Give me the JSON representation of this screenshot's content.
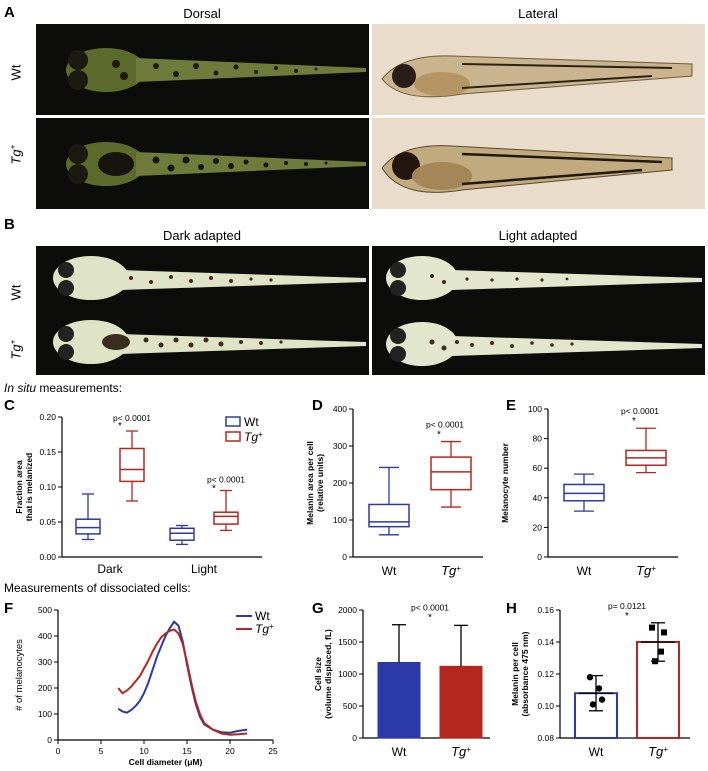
{
  "panels": {
    "A": {
      "letter": "A",
      "col_dorsal": "Dorsal",
      "col_lateral": "Lateral",
      "row_wt": "Wt",
      "row_tg": "Tg",
      "tg_sup": "+"
    },
    "B": {
      "letter": "B",
      "col_dark": "Dark adapted",
      "col_light": "Light adapted",
      "row_wt": "Wt",
      "row_tg": "Tg",
      "tg_sup": "+"
    },
    "insitu_caption": "In situ measurements:",
    "insitu_caption_italic": "In situ",
    "insitu_caption_rest": " measurements:",
    "dissoc_caption": "Measurements of dissociated cells:"
  },
  "colors": {
    "wt": "#2b3aa8",
    "tg": "#b5261e"
  },
  "chart_data": [
    {
      "id": "C",
      "letter": "C",
      "type": "box",
      "ylabel": "Fraction area that is melanized",
      "ylabel_lines": [
        "Fraction area",
        "that is melanized"
      ],
      "ylim": [
        0,
        0.2
      ],
      "yticks": [
        "0.00",
        "0.05",
        "0.10",
        "0.15",
        "0.20"
      ],
      "categories": [
        "Dark",
        "Light"
      ],
      "legend": [
        {
          "name": "Wt"
        },
        {
          "name": "Tg",
          "sup": "+"
        }
      ],
      "annotations": [
        "p< 0.0001",
        "*",
        "p< 0.0001",
        "*"
      ],
      "boxes": [
        {
          "group": "Dark",
          "series": "Wt",
          "min": 0.025,
          "q1": 0.033,
          "median": 0.042,
          "q3": 0.054,
          "max": 0.09
        },
        {
          "group": "Dark",
          "series": "Tg",
          "min": 0.08,
          "q1": 0.108,
          "median": 0.125,
          "q3": 0.155,
          "max": 0.18
        },
        {
          "group": "Light",
          "series": "Wt",
          "min": 0.018,
          "q1": 0.024,
          "median": 0.034,
          "q3": 0.041,
          "max": 0.045
        },
        {
          "group": "Light",
          "series": "Tg",
          "min": 0.038,
          "q1": 0.047,
          "median": 0.058,
          "q3": 0.064,
          "max": 0.095
        }
      ]
    },
    {
      "id": "D",
      "letter": "D",
      "type": "box",
      "ylabel_lines": [
        "Melanin area per cell",
        "(relative units)"
      ],
      "ylim": [
        0,
        400
      ],
      "yticks": [
        "0",
        "100",
        "200",
        "300",
        "400"
      ],
      "categories": [
        "Wt",
        "Tg"
      ],
      "tg_sup": "+",
      "annotations": [
        "p< 0.0001",
        "*"
      ],
      "boxes": [
        {
          "series": "Wt",
          "min": 60,
          "q1": 82,
          "median": 95,
          "q3": 142,
          "max": 242
        },
        {
          "series": "Tg",
          "min": 135,
          "q1": 182,
          "median": 230,
          "q3": 270,
          "max": 312
        }
      ]
    },
    {
      "id": "E",
      "letter": "E",
      "type": "box",
      "ylabel_lines": [
        "Melanocyte number"
      ],
      "ylim": [
        0,
        100
      ],
      "yticks": [
        "0",
        "20",
        "40",
        "60",
        "80",
        "100"
      ],
      "categories": [
        "Wt",
        "Tg"
      ],
      "tg_sup": "+",
      "annotations": [
        "p< 0.0001",
        "*"
      ],
      "boxes": [
        {
          "series": "Wt",
          "min": 31,
          "q1": 38,
          "median": 43,
          "q3": 49,
          "max": 56
        },
        {
          "series": "Tg",
          "min": 57,
          "q1": 62,
          "median": 67,
          "q3": 72,
          "max": 87
        }
      ]
    },
    {
      "id": "F",
      "letter": "F",
      "type": "line",
      "ylabel": "# of melanocytes",
      "xlabel": "Cell diameter (μM)",
      "xlim": [
        0,
        25
      ],
      "ylim": [
        0,
        500
      ],
      "xticks": [
        "0",
        "5",
        "10",
        "15",
        "20",
        "25"
      ],
      "yticks": [
        "0",
        "100",
        "200",
        "300",
        "400",
        "500"
      ],
      "legend": [
        {
          "name": "Wt"
        },
        {
          "name": "Tg",
          "sup": "+"
        }
      ],
      "series": [
        {
          "name": "Wt",
          "x": [
            7,
            7.5,
            8,
            8.5,
            9,
            9.5,
            10,
            10.5,
            11,
            11.5,
            12,
            12.5,
            13,
            13.5,
            14,
            14.5,
            15,
            15.5,
            16,
            16.5,
            17,
            18,
            19,
            20,
            21,
            22
          ],
          "y": [
            120,
            110,
            105,
            115,
            130,
            150,
            180,
            220,
            270,
            320,
            360,
            400,
            430,
            455,
            440,
            380,
            290,
            210,
            140,
            90,
            60,
            40,
            30,
            28,
            35,
            40
          ]
        },
        {
          "name": "Tg",
          "x": [
            7,
            7.5,
            8,
            8.5,
            9,
            9.5,
            10,
            10.5,
            11,
            11.5,
            12,
            12.5,
            13,
            13.5,
            14,
            14.5,
            15,
            15.5,
            16,
            16.5,
            17,
            18,
            19,
            20,
            21,
            22
          ],
          "y": [
            200,
            180,
            190,
            205,
            225,
            245,
            275,
            305,
            340,
            370,
            395,
            410,
            420,
            425,
            410,
            370,
            300,
            220,
            150,
            100,
            65,
            40,
            25,
            20,
            22,
            25
          ]
        }
      ]
    },
    {
      "id": "G",
      "letter": "G",
      "type": "bar",
      "ylabel_lines": [
        "Cell size",
        "(volume displaced, fL)"
      ],
      "ylim": [
        0,
        2000
      ],
      "yticks": [
        "0",
        "500",
        "1000",
        "1500",
        "2000"
      ],
      "categories": [
        "Wt",
        "Tg"
      ],
      "tg_sup": "+",
      "values": [
        1180,
        1120
      ],
      "errors": [
        590,
        640
      ],
      "annotations": [
        "p< 0.0001",
        "*"
      ]
    },
    {
      "id": "H",
      "letter": "H",
      "type": "bar",
      "ylabel_lines": [
        "Melanin per cell",
        "(absorbance 475 nm)"
      ],
      "ylim": [
        0.08,
        0.16
      ],
      "yticks": [
        "0.08",
        "0.10",
        "0.12",
        "0.14",
        "0.16"
      ],
      "categories": [
        "Wt",
        "Tg"
      ],
      "tg_sup": "+",
      "values": [
        0.108,
        0.14
      ],
      "errors": [
        0.011,
        0.012
      ],
      "points": [
        [
          0.118,
          0.104,
          0.101,
          0.111
        ],
        [
          0.149,
          0.146,
          0.128,
          0.134
        ]
      ],
      "annotations": [
        "p= 0.0121",
        "*"
      ]
    }
  ]
}
